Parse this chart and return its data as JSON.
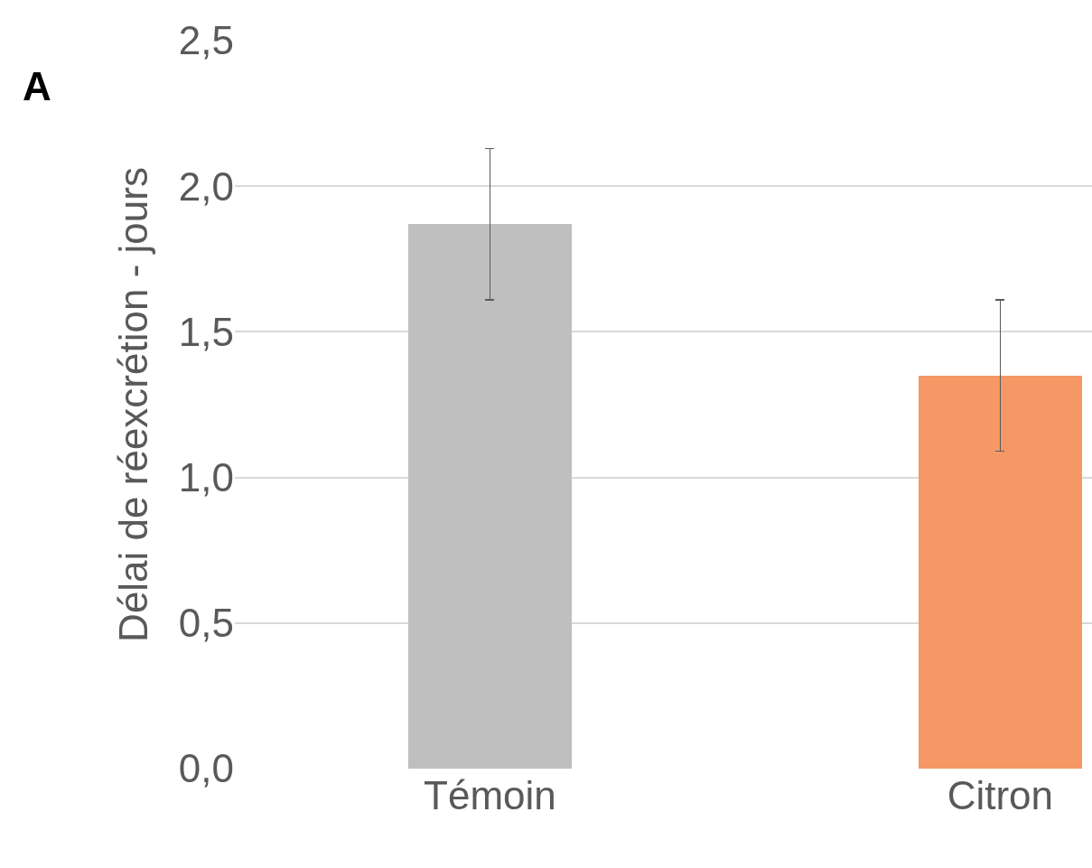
{
  "chart_data": {
    "type": "bar",
    "ylabel": "Délai de réexcrétion - jours",
    "categories": [
      "Témoin",
      "Citron"
    ],
    "values": [
      1.87,
      1.35
    ],
    "colors": [
      "#bfbfbf",
      "#f59866"
    ],
    "errors": [
      [
        1.61,
        2.13
      ],
      [
        1.09,
        1.61
      ]
    ],
    "ylim": [
      0,
      2.5
    ],
    "yticks": [
      {
        "value": 0,
        "label": "0,0"
      },
      {
        "value": 0.5,
        "label": "0,5"
      },
      {
        "value": 1,
        "label": "1,0"
      },
      {
        "value": 1.5,
        "label": "1,5"
      },
      {
        "value": 2,
        "label": "2,0"
      },
      {
        "value": 2.5,
        "label": "2,5"
      }
    ],
    "grid": "y",
    "legend": false,
    "annotations": [
      "A"
    ]
  }
}
